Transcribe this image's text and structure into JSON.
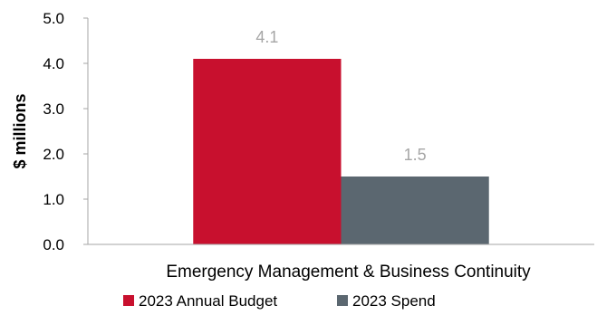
{
  "chart_data": {
    "type": "bar",
    "categories": [
      "Emergency Management & Business Continuity"
    ],
    "series": [
      {
        "name": "2023 Annual Budget",
        "values": [
          4.1
        ],
        "color": "#c8102e"
      },
      {
        "name": "2023 Spend",
        "values": [
          1.5
        ],
        "color": "#5b6770"
      }
    ],
    "data_labels": [
      "4.1",
      "1.5"
    ],
    "ylabel": "$ millions",
    "ylim": [
      0,
      5
    ],
    "yticks": [
      "0.0",
      "1.0",
      "2.0",
      "3.0",
      "4.0",
      "5.0"
    ],
    "grid": false,
    "legend_position": "bottom-left"
  }
}
